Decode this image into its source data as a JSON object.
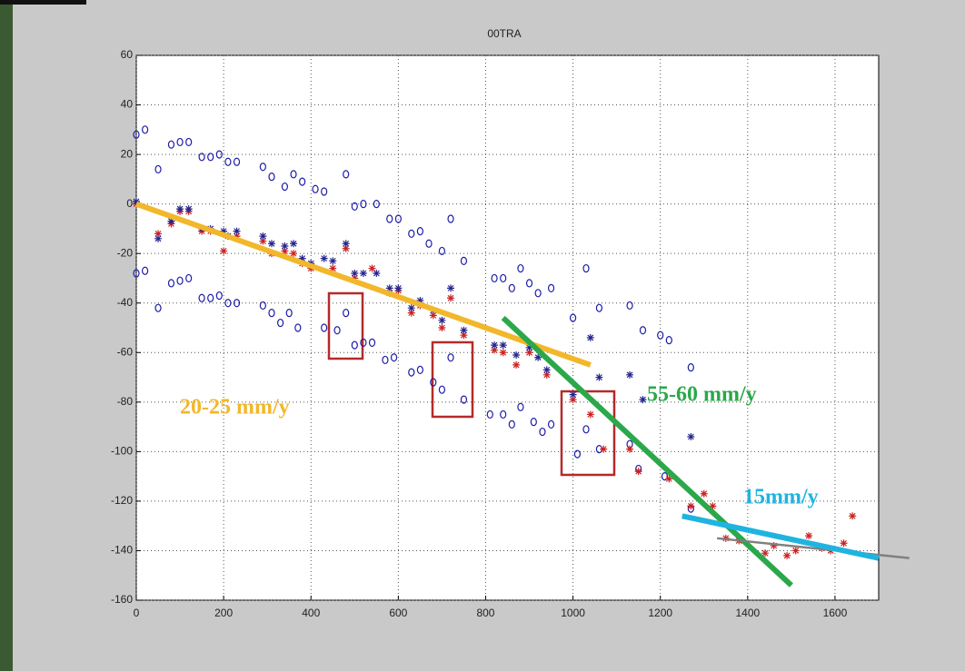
{
  "chart_data": {
    "type": "scatter",
    "title": "00TRA",
    "xlim": [
      0,
      1700
    ],
    "xticks": [
      0,
      200,
      400,
      600,
      800,
      1000,
      1200,
      1400,
      1600
    ],
    "ylim": [
      -160,
      60
    ],
    "yticks": [
      -160,
      -140,
      -120,
      -100,
      -80,
      -60,
      -40,
      -20,
      0,
      20,
      40,
      60
    ],
    "grid": true,
    "series": [
      {
        "marker": "o",
        "color": "#1c1ca8",
        "x": [
          0,
          20,
          50,
          80,
          100,
          120,
          150,
          170,
          190,
          210,
          230,
          290,
          310,
          340,
          360,
          380,
          410,
          430,
          480,
          500,
          520,
          550,
          580,
          600,
          630,
          650,
          670,
          700,
          720,
          750,
          820,
          840,
          860,
          880,
          900,
          920,
          950,
          1000,
          1030,
          1060,
          1130,
          1160,
          1200,
          1220,
          1270
        ],
        "values": [
          28,
          30,
          14,
          24,
          25,
          25,
          19,
          19,
          20,
          17,
          17,
          15,
          11,
          7,
          12,
          9,
          6,
          5,
          12,
          -1,
          0,
          0,
          -6,
          -6,
          -12,
          -11,
          -16,
          -19,
          -6,
          -23,
          -30,
          -30,
          -34,
          -26,
          -32,
          -36,
          -34,
          -46,
          -26,
          -42,
          -41,
          -51,
          -53,
          -55,
          -66
        ]
      },
      {
        "marker": "o",
        "color": "#1c1ca8",
        "x": [
          0,
          20,
          50,
          80,
          100,
          120,
          150,
          170,
          190,
          210,
          230,
          290,
          310,
          330,
          350,
          370,
          430,
          460,
          480,
          500,
          520,
          540,
          570,
          590,
          630,
          650,
          680,
          700,
          720,
          750,
          810,
          840,
          860,
          880,
          910,
          930,
          950,
          1010,
          1030,
          1060,
          1130,
          1150,
          1210,
          1270
        ],
        "values": [
          -28,
          -27,
          -42,
          -32,
          -31,
          -30,
          -38,
          -38,
          -37,
          -40,
          -40,
          -41,
          -44,
          -48,
          -44,
          -50,
          -50,
          -51,
          -44,
          -57,
          -56,
          -56,
          -63,
          -62,
          -68,
          -67,
          -72,
          -75,
          -62,
          -79,
          -85,
          -85,
          -89,
          -82,
          -88,
          -92,
          -89,
          -101,
          -91,
          -99,
          -97,
          -107,
          -110,
          -123
        ]
      },
      {
        "marker": "*",
        "color": "#cc2222",
        "x": [
          0,
          50,
          80,
          100,
          120,
          150,
          170,
          200,
          230,
          290,
          310,
          340,
          360,
          380,
          400,
          450,
          480,
          500,
          540,
          580,
          600,
          630,
          650,
          680,
          700,
          720,
          750,
          820,
          840,
          870,
          900,
          940,
          1000,
          1040,
          1070,
          1130,
          1150,
          1220,
          1270,
          1300,
          1320,
          1350,
          1380,
          1440,
          1460,
          1490,
          1510,
          1540,
          1570,
          1590,
          1620,
          1640
        ],
        "values": [
          0,
          -12,
          -8,
          -3,
          -3,
          -11,
          -11,
          -19,
          -13,
          -15,
          -20,
          -19,
          -20,
          -24,
          -26,
          -26,
          -18,
          -30,
          -26,
          -36,
          -35,
          -44,
          -41,
          -45,
          -50,
          -38,
          -53,
          -59,
          -60,
          -65,
          -60,
          -69,
          -79,
          -85,
          -99,
          -99,
          -108,
          -111,
          -122,
          -117,
          -122,
          -135,
          -136,
          -141,
          -138,
          -142,
          -140,
          -134,
          -139,
          -140,
          -137,
          -126
        ]
      },
      {
        "marker": "*",
        "color": "#26268f",
        "x": [
          0,
          50,
          80,
          100,
          120,
          150,
          170,
          200,
          210,
          230,
          290,
          310,
          340,
          360,
          380,
          400,
          430,
          450,
          480,
          500,
          520,
          550,
          580,
          600,
          630,
          650,
          680,
          700,
          720,
          750,
          820,
          840,
          870,
          900,
          920,
          940,
          1000,
          1040,
          1060,
          1130,
          1160,
          1270
        ],
        "values": [
          1,
          -14,
          -7,
          -2,
          -2,
          -10,
          -10,
          -11,
          -13,
          -11,
          -13,
          -16,
          -17,
          -16,
          -22,
          -24,
          -22,
          -23,
          -16,
          -28,
          -28,
          -28,
          -34,
          -34,
          -42,
          -39,
          -43,
          -47,
          -34,
          -51,
          -57,
          -57,
          -61,
          -58,
          -62,
          -67,
          -77,
          -54,
          -70,
          -69,
          -79,
          -94
        ]
      }
    ],
    "trend_lines": [
      {
        "color": "#f2b72a",
        "x": [
          0,
          1040
        ],
        "values": [
          0,
          -65
        ]
      },
      {
        "color": "#2aa84a",
        "x": [
          840,
          1500
        ],
        "values": [
          -46,
          -154
        ]
      },
      {
        "color": "#808080",
        "x": [
          1330,
          1770
        ],
        "values": [
          -135,
          -143
        ]
      },
      {
        "color": "#1fb4e0",
        "x": [
          1250,
          1700
        ],
        "values": [
          -126,
          -143
        ]
      }
    ],
    "annotations": [
      {
        "text": "20-25 mm/y",
        "color": "#f2b72a"
      },
      {
        "text": "55-60 mm/y",
        "color": "#2aa84a"
      },
      {
        "text": "15mm/y",
        "color": "#1fb4e0"
      }
    ]
  }
}
